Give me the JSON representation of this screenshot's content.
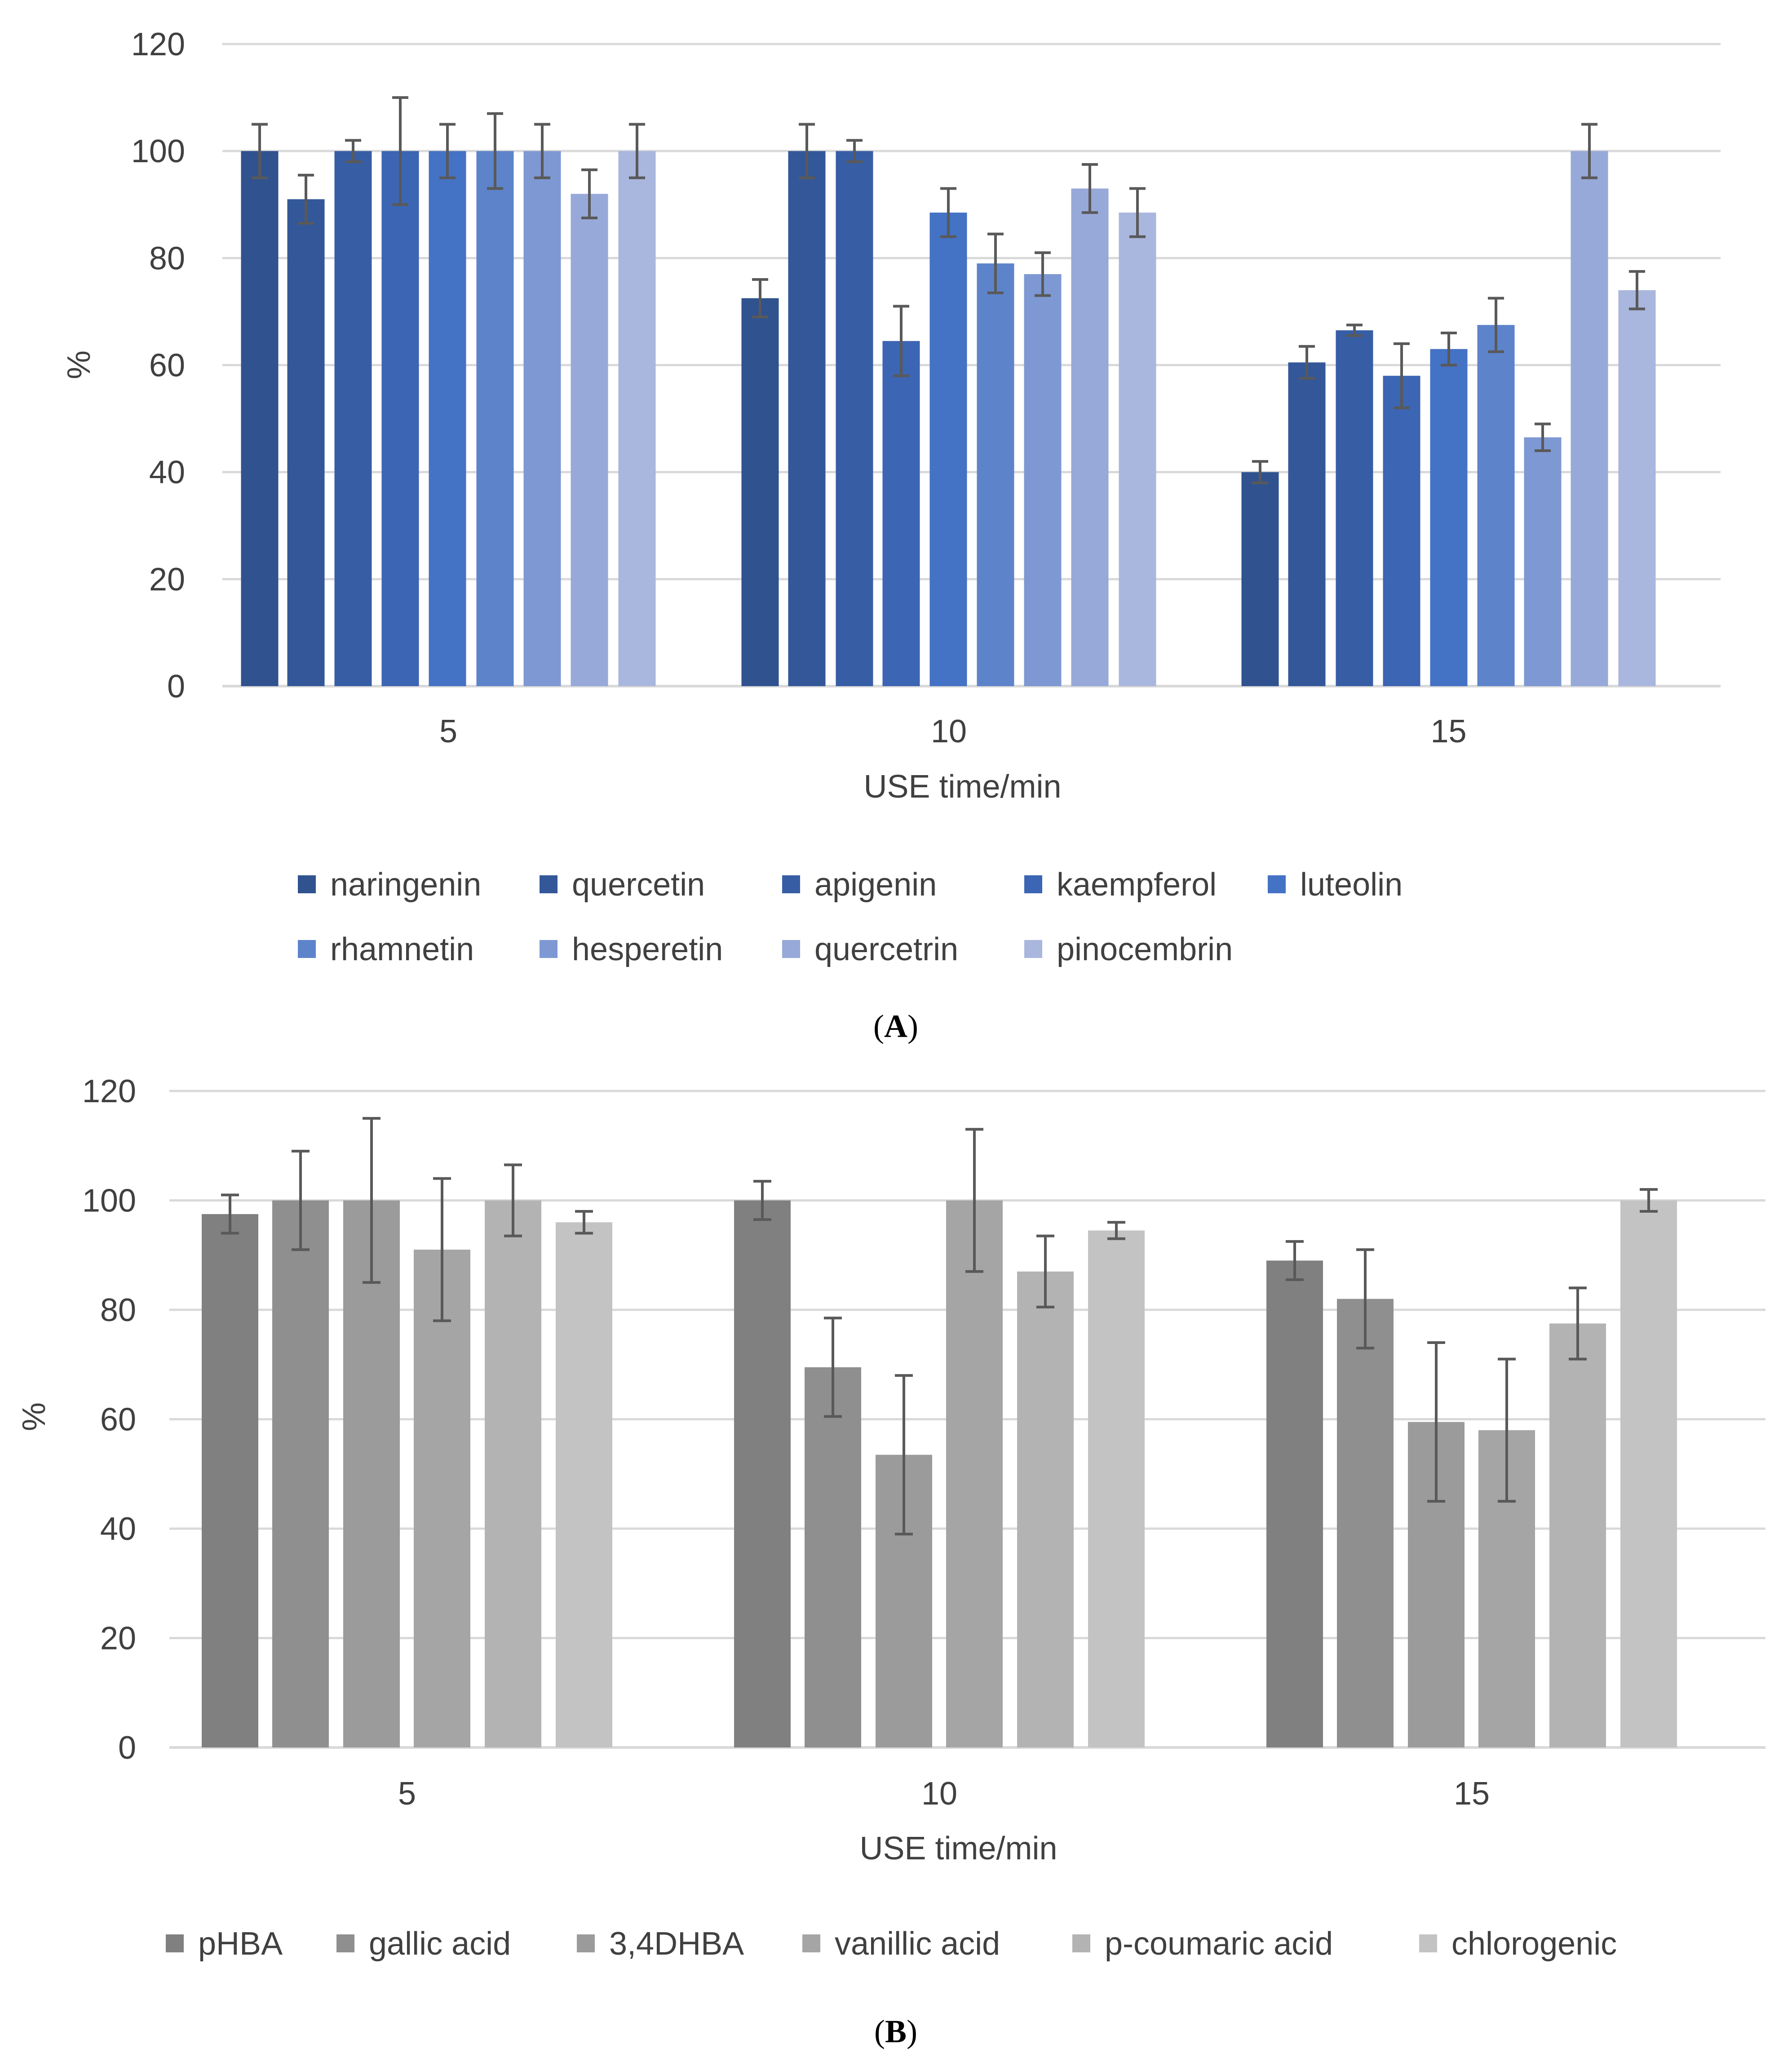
{
  "chart_data": [
    {
      "type": "bar",
      "panel_label": "A",
      "xlabel": "USE time/min",
      "ylabel": "%",
      "ylim": [
        0,
        120
      ],
      "yticks": [
        0,
        20,
        40,
        60,
        80,
        100,
        120
      ],
      "categories": [
        "5",
        "10",
        "15"
      ],
      "grid": true,
      "legend": "bottom",
      "series": [
        {
          "name": "naringenin",
          "color": "#30528f",
          "values": [
            100,
            72.5,
            40
          ],
          "errors": [
            5,
            3.5,
            2
          ]
        },
        {
          "name": "quercetin",
          "color": "#335799",
          "values": [
            91,
            100,
            60.5
          ],
          "errors": [
            4.5,
            5,
            3
          ]
        },
        {
          "name": "apigenin",
          "color": "#375ea5",
          "values": [
            100,
            100,
            66.5
          ],
          "errors": [
            2,
            2,
            1
          ]
        },
        {
          "name": "kaempferol",
          "color": "#3c65b3",
          "values": [
            100,
            64.5,
            58
          ],
          "errors": [
            10,
            6.5,
            6
          ]
        },
        {
          "name": "luteolin",
          "color": "#4472c4",
          "values": [
            100,
            88.5,
            63
          ],
          "errors": [
            5,
            4.5,
            3
          ]
        },
        {
          "name": "rhamnetin",
          "color": "#5d83cb",
          "values": [
            100,
            79,
            67.5
          ],
          "errors": [
            7,
            5.5,
            5
          ]
        },
        {
          "name": "hesperetin",
          "color": "#7e98d3",
          "values": [
            100,
            77,
            46.5
          ],
          "errors": [
            5,
            4,
            2.5
          ]
        },
        {
          "name": "quercetrin",
          "color": "#97a9d8",
          "values": [
            92,
            93,
            100
          ],
          "errors": [
            4.5,
            4.5,
            5
          ]
        },
        {
          "name": "pinocembrin",
          "color": "#a9b6de",
          "values": [
            100,
            88.5,
            74
          ],
          "errors": [
            5,
            4.5,
            3.5
          ]
        }
      ]
    },
    {
      "type": "bar",
      "panel_label": "B",
      "xlabel": "USE time/min",
      "ylabel": "%",
      "ylim": [
        0,
        120
      ],
      "yticks": [
        0,
        20,
        40,
        60,
        80,
        100,
        120
      ],
      "categories": [
        "5",
        "10",
        "15"
      ],
      "grid": true,
      "legend": "bottom",
      "series": [
        {
          "name": "pHBA",
          "color": "#808080",
          "values": [
            97.5,
            100,
            89
          ],
          "errors": [
            3.5,
            3.5,
            3.5
          ]
        },
        {
          "name": "gallic acid",
          "color": "#8f8f8f",
          "values": [
            100,
            69.5,
            82
          ],
          "errors": [
            9,
            9,
            9
          ]
        },
        {
          "name": "3,4DHBA",
          "color": "#9b9b9b",
          "values": [
            100,
            53.5,
            59.5
          ],
          "errors": [
            15,
            14.5,
            14.5
          ]
        },
        {
          "name": "vanillic acid",
          "color": "#a5a5a5",
          "values": [
            91,
            100,
            58
          ],
          "errors": [
            13,
            13,
            13
          ]
        },
        {
          "name": "p-coumaric acid",
          "color": "#b3b3b3",
          "values": [
            100,
            87,
            77.5
          ],
          "errors": [
            6.5,
            6.5,
            6.5
          ]
        },
        {
          "name": "chlorogenic",
          "color": "#c3c3c3",
          "values": [
            96,
            94.5,
            100
          ],
          "errors": [
            2,
            1.5,
            2
          ]
        }
      ]
    }
  ]
}
